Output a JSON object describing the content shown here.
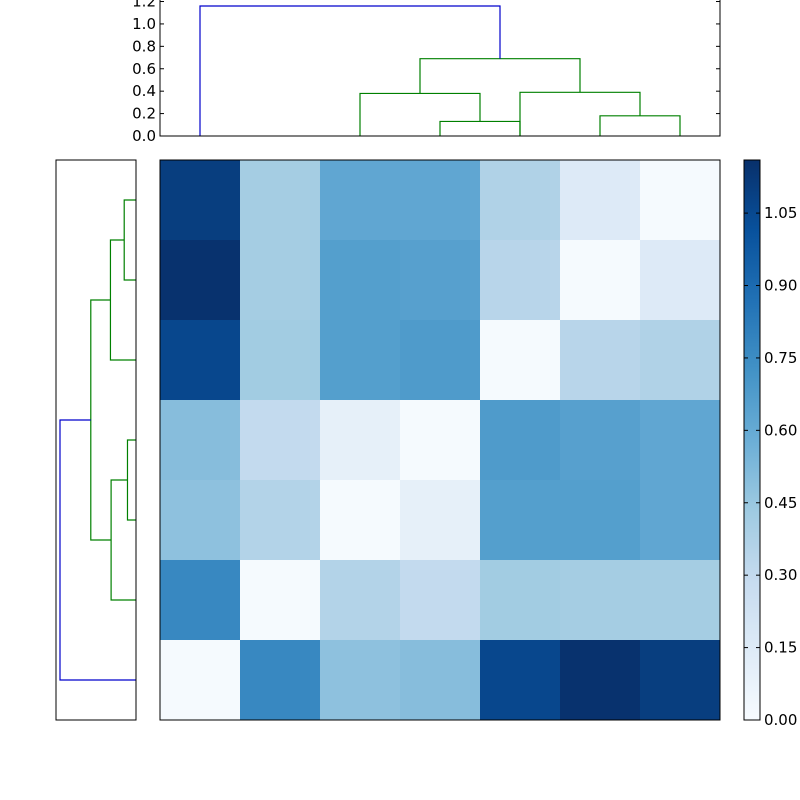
{
  "chart_data": [
    {
      "type": "heatmap",
      "name": "distance-matrix",
      "colormap": [
        "#f7fbff",
        "#deebf7",
        "#c6dbef",
        "#9ecae1",
        "#6baed6",
        "#4292c6",
        "#2171b5",
        "#08519c",
        "#08306b"
      ],
      "value_range": [
        0,
        1.16
      ],
      "rows": 7,
      "cols": 7,
      "values": [
        [
          1.1,
          0.41,
          0.62,
          0.62,
          0.37,
          0.15,
          0.01
        ],
        [
          1.15,
          0.41,
          0.66,
          0.65,
          0.34,
          0.01,
          0.15
        ],
        [
          1.06,
          0.42,
          0.66,
          0.68,
          0.01,
          0.34,
          0.37
        ],
        [
          0.5,
          0.3,
          0.1,
          0.01,
          0.68,
          0.65,
          0.62
        ],
        [
          0.48,
          0.36,
          0.01,
          0.1,
          0.66,
          0.66,
          0.62
        ],
        [
          0.77,
          0.01,
          0.36,
          0.3,
          0.42,
          0.41,
          0.41
        ],
        [
          0.01,
          0.77,
          0.48,
          0.5,
          1.06,
          1.15,
          1.1
        ]
      ]
    },
    {
      "type": "dendrogram",
      "name": "top-dendrogram",
      "ylim": [
        0,
        1.2
      ],
      "yticks": [
        "0.0",
        "0.2",
        "0.4",
        "0.6",
        "0.8",
        "1.0",
        "1.2"
      ],
      "leaves": 7,
      "links": [
        {
          "left": 3,
          "right": 4,
          "height": 0.13,
          "color": "#008000"
        },
        {
          "left": 2,
          "right": 3.5,
          "height": 0.38,
          "color": "#008000"
        },
        {
          "left": 5,
          "right": 6,
          "height": 0.18,
          "color": "#008000"
        },
        {
          "left": 4,
          "right": 5.5,
          "height": 0.39,
          "color": "#008000"
        },
        {
          "left": 2.75,
          "right": 4.75,
          "height": 0.69,
          "color": "#008000"
        },
        {
          "left": 0,
          "right": 3.75,
          "height": 1.16,
          "color": "#0000cc"
        }
      ]
    },
    {
      "type": "dendrogram",
      "name": "left-dendrogram",
      "xlim": [
        1.2,
        0
      ],
      "leaves": 7,
      "links": [
        {
          "top": 0,
          "bottom": 1,
          "height": 0.18,
          "color": "#008000"
        },
        {
          "top": 0.5,
          "bottom": 2,
          "height": 0.39,
          "color": "#008000"
        },
        {
          "top": 3,
          "bottom": 4,
          "height": 0.13,
          "color": "#008000"
        },
        {
          "top": 3.5,
          "bottom": 5,
          "height": 0.38,
          "color": "#008000"
        },
        {
          "top": 1.25,
          "bottom": 4.25,
          "height": 0.69,
          "color": "#008000"
        },
        {
          "top": 2.75,
          "bottom": 6,
          "height": 1.16,
          "color": "#0000cc"
        }
      ]
    },
    {
      "type": "colorbar",
      "name": "heatmap-colorbar",
      "range": [
        0,
        1.16
      ],
      "ticks": [
        0.0,
        0.15,
        0.3,
        0.45,
        0.6,
        0.75,
        0.9,
        1.05
      ],
      "tick_labels": [
        "0.00",
        "0.15",
        "0.30",
        "0.45",
        "0.60",
        "0.75",
        "0.90",
        "1.05"
      ]
    }
  ]
}
